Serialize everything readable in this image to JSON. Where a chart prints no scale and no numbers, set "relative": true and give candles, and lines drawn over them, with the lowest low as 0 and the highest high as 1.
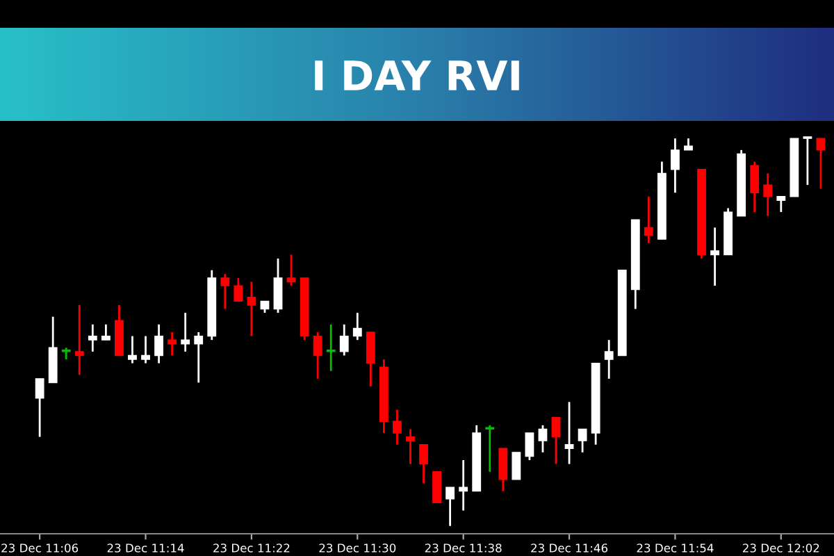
{
  "chart_data": {
    "type": "candlestick",
    "title": "I DAY RVI",
    "relative": true,
    "categories": [
      "23 Dec 11:06",
      null,
      null,
      null,
      null,
      null,
      null,
      null,
      "23 Dec 11:14",
      null,
      null,
      null,
      null,
      null,
      null,
      null,
      "23 Dec 11:22",
      null,
      null,
      null,
      null,
      null,
      null,
      null,
      "23 Dec 11:30",
      null,
      null,
      null,
      null,
      null,
      null,
      null,
      "23 Dec 11:38",
      null,
      null,
      null,
      null,
      null,
      null,
      null,
      "23 Dec 11:46",
      null,
      null,
      null,
      null,
      null,
      null,
      null,
      "23 Dec 11:54",
      null,
      null,
      null,
      null,
      null,
      null,
      null,
      "23 Dec 12:02",
      null,
      null,
      null
    ],
    "ohlc": [
      [
        0.33,
        0.38,
        0.23,
        0.38
      ],
      [
        0.37,
        0.54,
        0.37,
        0.46
      ],
      [
        0.45,
        0.46,
        0.43,
        0.45
      ],
      [
        0.45,
        0.57,
        0.39,
        0.44
      ],
      [
        0.48,
        0.52,
        0.45,
        0.49
      ],
      [
        0.48,
        0.52,
        0.48,
        0.49
      ],
      [
        0.53,
        0.57,
        0.44,
        0.44
      ],
      [
        0.43,
        0.49,
        0.42,
        0.44
      ],
      [
        0.43,
        0.49,
        0.42,
        0.44
      ],
      [
        0.44,
        0.52,
        0.42,
        0.49
      ],
      [
        0.48,
        0.5,
        0.44,
        0.47
      ],
      [
        0.47,
        0.55,
        0.45,
        0.48
      ],
      [
        0.47,
        0.5,
        0.37,
        0.49
      ],
      [
        0.49,
        0.66,
        0.48,
        0.64
      ],
      [
        0.64,
        0.65,
        0.56,
        0.62
      ],
      [
        0.62,
        0.64,
        0.58,
        0.58
      ],
      [
        0.59,
        0.63,
        0.49,
        0.57
      ],
      [
        0.56,
        0.58,
        0.55,
        0.58
      ],
      [
        0.56,
        0.69,
        0.55,
        0.64
      ],
      [
        0.64,
        0.7,
        0.62,
        0.63
      ],
      [
        0.64,
        0.64,
        0.48,
        0.49
      ],
      [
        0.49,
        0.5,
        0.38,
        0.44
      ],
      [
        0.45,
        0.52,
        0.4,
        0.45
      ],
      [
        0.45,
        0.52,
        0.44,
        0.49
      ],
      [
        0.49,
        0.55,
        0.48,
        0.51
      ],
      [
        0.5,
        0.5,
        0.36,
        0.42
      ],
      [
        0.41,
        0.43,
        0.24,
        0.27
      ],
      [
        0.27,
        0.3,
        0.21,
        0.24
      ],
      [
        0.23,
        0.25,
        0.16,
        0.22
      ],
      [
        0.21,
        0.21,
        0.11,
        0.16
      ],
      [
        0.14,
        0.14,
        0.06,
        0.06
      ],
      [
        0.07,
        0.1,
        0,
        0.1
      ],
      [
        0.09,
        0.17,
        0.04,
        0.1
      ],
      [
        0.09,
        0.26,
        0.09,
        0.24
      ],
      [
        0.25,
        0.26,
        0.14,
        0.25
      ],
      [
        0.2,
        0.2,
        0.09,
        0.12
      ],
      [
        0.12,
        0.19,
        0.12,
        0.19
      ],
      [
        0.18,
        0.24,
        0.17,
        0.24
      ],
      [
        0.22,
        0.26,
        0.19,
        0.25
      ],
      [
        0.28,
        0.28,
        0.16,
        0.23
      ],
      [
        0.2,
        0.32,
        0.16,
        0.21
      ],
      [
        0.22,
        0.25,
        0.19,
        0.25
      ],
      [
        0.24,
        0.42,
        0.21,
        0.42
      ],
      [
        0.43,
        0.48,
        0.38,
        0.45
      ],
      [
        0.44,
        0.66,
        0.44,
        0.66
      ],
      [
        0.61,
        0.79,
        0.56,
        0.79
      ],
      [
        0.77,
        0.85,
        0.73,
        0.75
      ],
      [
        0.74,
        0.94,
        0.74,
        0.91
      ],
      [
        0.92,
        1.0,
        0.86,
        0.97
      ],
      [
        0.97,
        1.0,
        0.97,
        0.98
      ],
      [
        0.92,
        0.92,
        0.69,
        0.7
      ],
      [
        0.7,
        0.77,
        0.62,
        0.71
      ],
      [
        0.7,
        0.82,
        0.7,
        0.81
      ],
      [
        0.8,
        0.97,
        0.8,
        0.96
      ],
      [
        0.93,
        0.94,
        0.81,
        0.86
      ],
      [
        0.88,
        0.91,
        0.8,
        0.85
      ],
      [
        0.84,
        0.85,
        0.81,
        0.85
      ],
      [
        0.85,
        1.0,
        0.85,
        1.0
      ],
      [
        1.0,
        1.0,
        0.88,
        1.0
      ],
      [
        1.0,
        1.0,
        0.87,
        0.97
      ]
    ],
    "colors": [
      "#ffffff",
      "#ffffff",
      "#00c000",
      "#ff0000",
      "#ffffff",
      "#ffffff",
      "#ff0000",
      "#ffffff",
      "#ffffff",
      "#ffffff",
      "#ff0000",
      "#ffffff",
      "#ffffff",
      "#ffffff",
      "#ff0000",
      "#ff0000",
      "#ff0000",
      "#ffffff",
      "#ffffff",
      "#ff0000",
      "#ff0000",
      "#ff0000",
      "#00c000",
      "#ffffff",
      "#ffffff",
      "#ff0000",
      "#ff0000",
      "#ff0000",
      "#ff0000",
      "#ff0000",
      "#ff0000",
      "#ffffff",
      "#ffffff",
      "#ffffff",
      "#00c000",
      "#ff0000",
      "#ffffff",
      "#ffffff",
      "#ffffff",
      "#ff0000",
      "#ffffff",
      "#ffffff",
      "#ffffff",
      "#ffffff",
      "#ffffff",
      "#ffffff",
      "#ff0000",
      "#ffffff",
      "#ffffff",
      "#ffffff",
      "#ff0000",
      "#ffffff",
      "#ffffff",
      "#ffffff",
      "#ff0000",
      "#ff0000",
      "#ffffff",
      "#ffffff",
      "#ffffff",
      "#ff0000"
    ]
  }
}
